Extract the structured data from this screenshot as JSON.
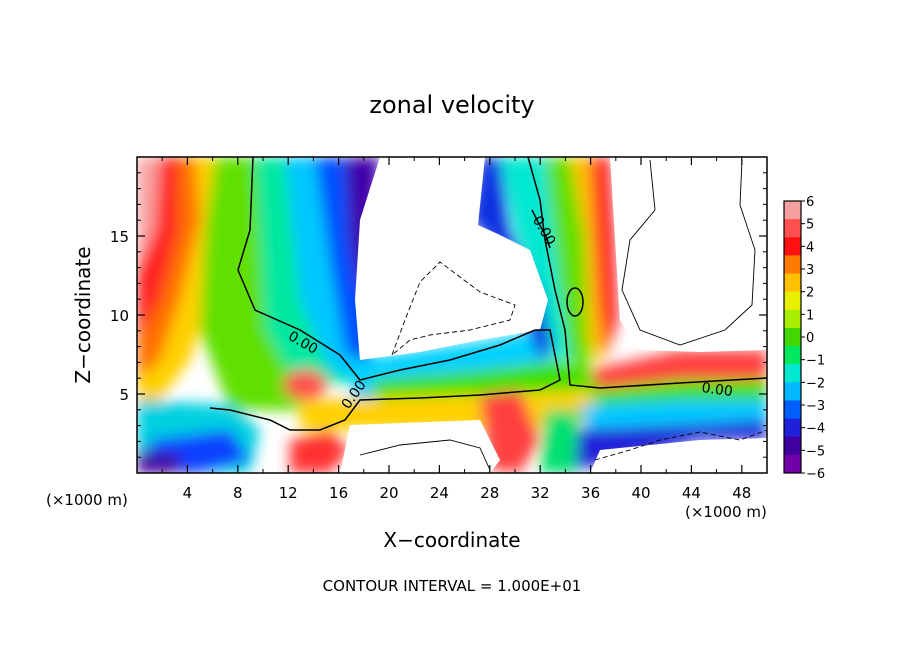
{
  "chart_data": {
    "type": "heatmap",
    "title": "zonal velocity",
    "xlabel": "X−coordinate",
    "ylabel": "Z−coordinate",
    "x_unit_left": "(×1000 m)",
    "x_unit_right": "(×1000 m)",
    "xlim": [
      0,
      50
    ],
    "ylim": [
      0,
      20
    ],
    "x_ticks": [
      4,
      8,
      12,
      16,
      20,
      24,
      28,
      32,
      36,
      40,
      44,
      48
    ],
    "y_ticks": [
      5,
      10,
      15
    ],
    "x_tick_labels": [
      "4",
      "8",
      "12",
      "16",
      "20",
      "24",
      "28",
      "32",
      "36",
      "40",
      "44",
      "48"
    ],
    "y_tick_labels": [
      "5",
      "10",
      "15"
    ],
    "footer": "CONTOUR INTERVAL = 1.000E+01",
    "contour_labels": [
      {
        "text": "0.00",
        "x": 13,
        "z": 8.0,
        "angle": 30
      },
      {
        "text": "0.00",
        "x": 17.5,
        "z": 4.8,
        "angle": -55
      },
      {
        "text": "0.00",
        "x": 32,
        "z": 15.2,
        "angle": 60
      },
      {
        "text": "0.00",
        "x": 46,
        "z": 5.0,
        "angle": 8
      }
    ],
    "colorbar": {
      "ticks": [
        6,
        5,
        4,
        3,
        2,
        1,
        0,
        -1,
        -2,
        -3,
        -4,
        -5,
        -6
      ],
      "tick_labels": [
        "6",
        "5",
        "4",
        "3",
        "2",
        "1",
        "0",
        "−1",
        "−2",
        "−3",
        "−4",
        "−5",
        "−6"
      ],
      "colors": [
        "#f4a0a0",
        "#ff5050",
        "#ff1010",
        "#ff7a00",
        "#ffc000",
        "#e8f000",
        "#a8ec00",
        "#40d800",
        "#00e860",
        "#00e8d0",
        "#00b8ff",
        "#0060ff",
        "#2020d8",
        "#4000a0",
        "#7000a8"
      ]
    }
  }
}
